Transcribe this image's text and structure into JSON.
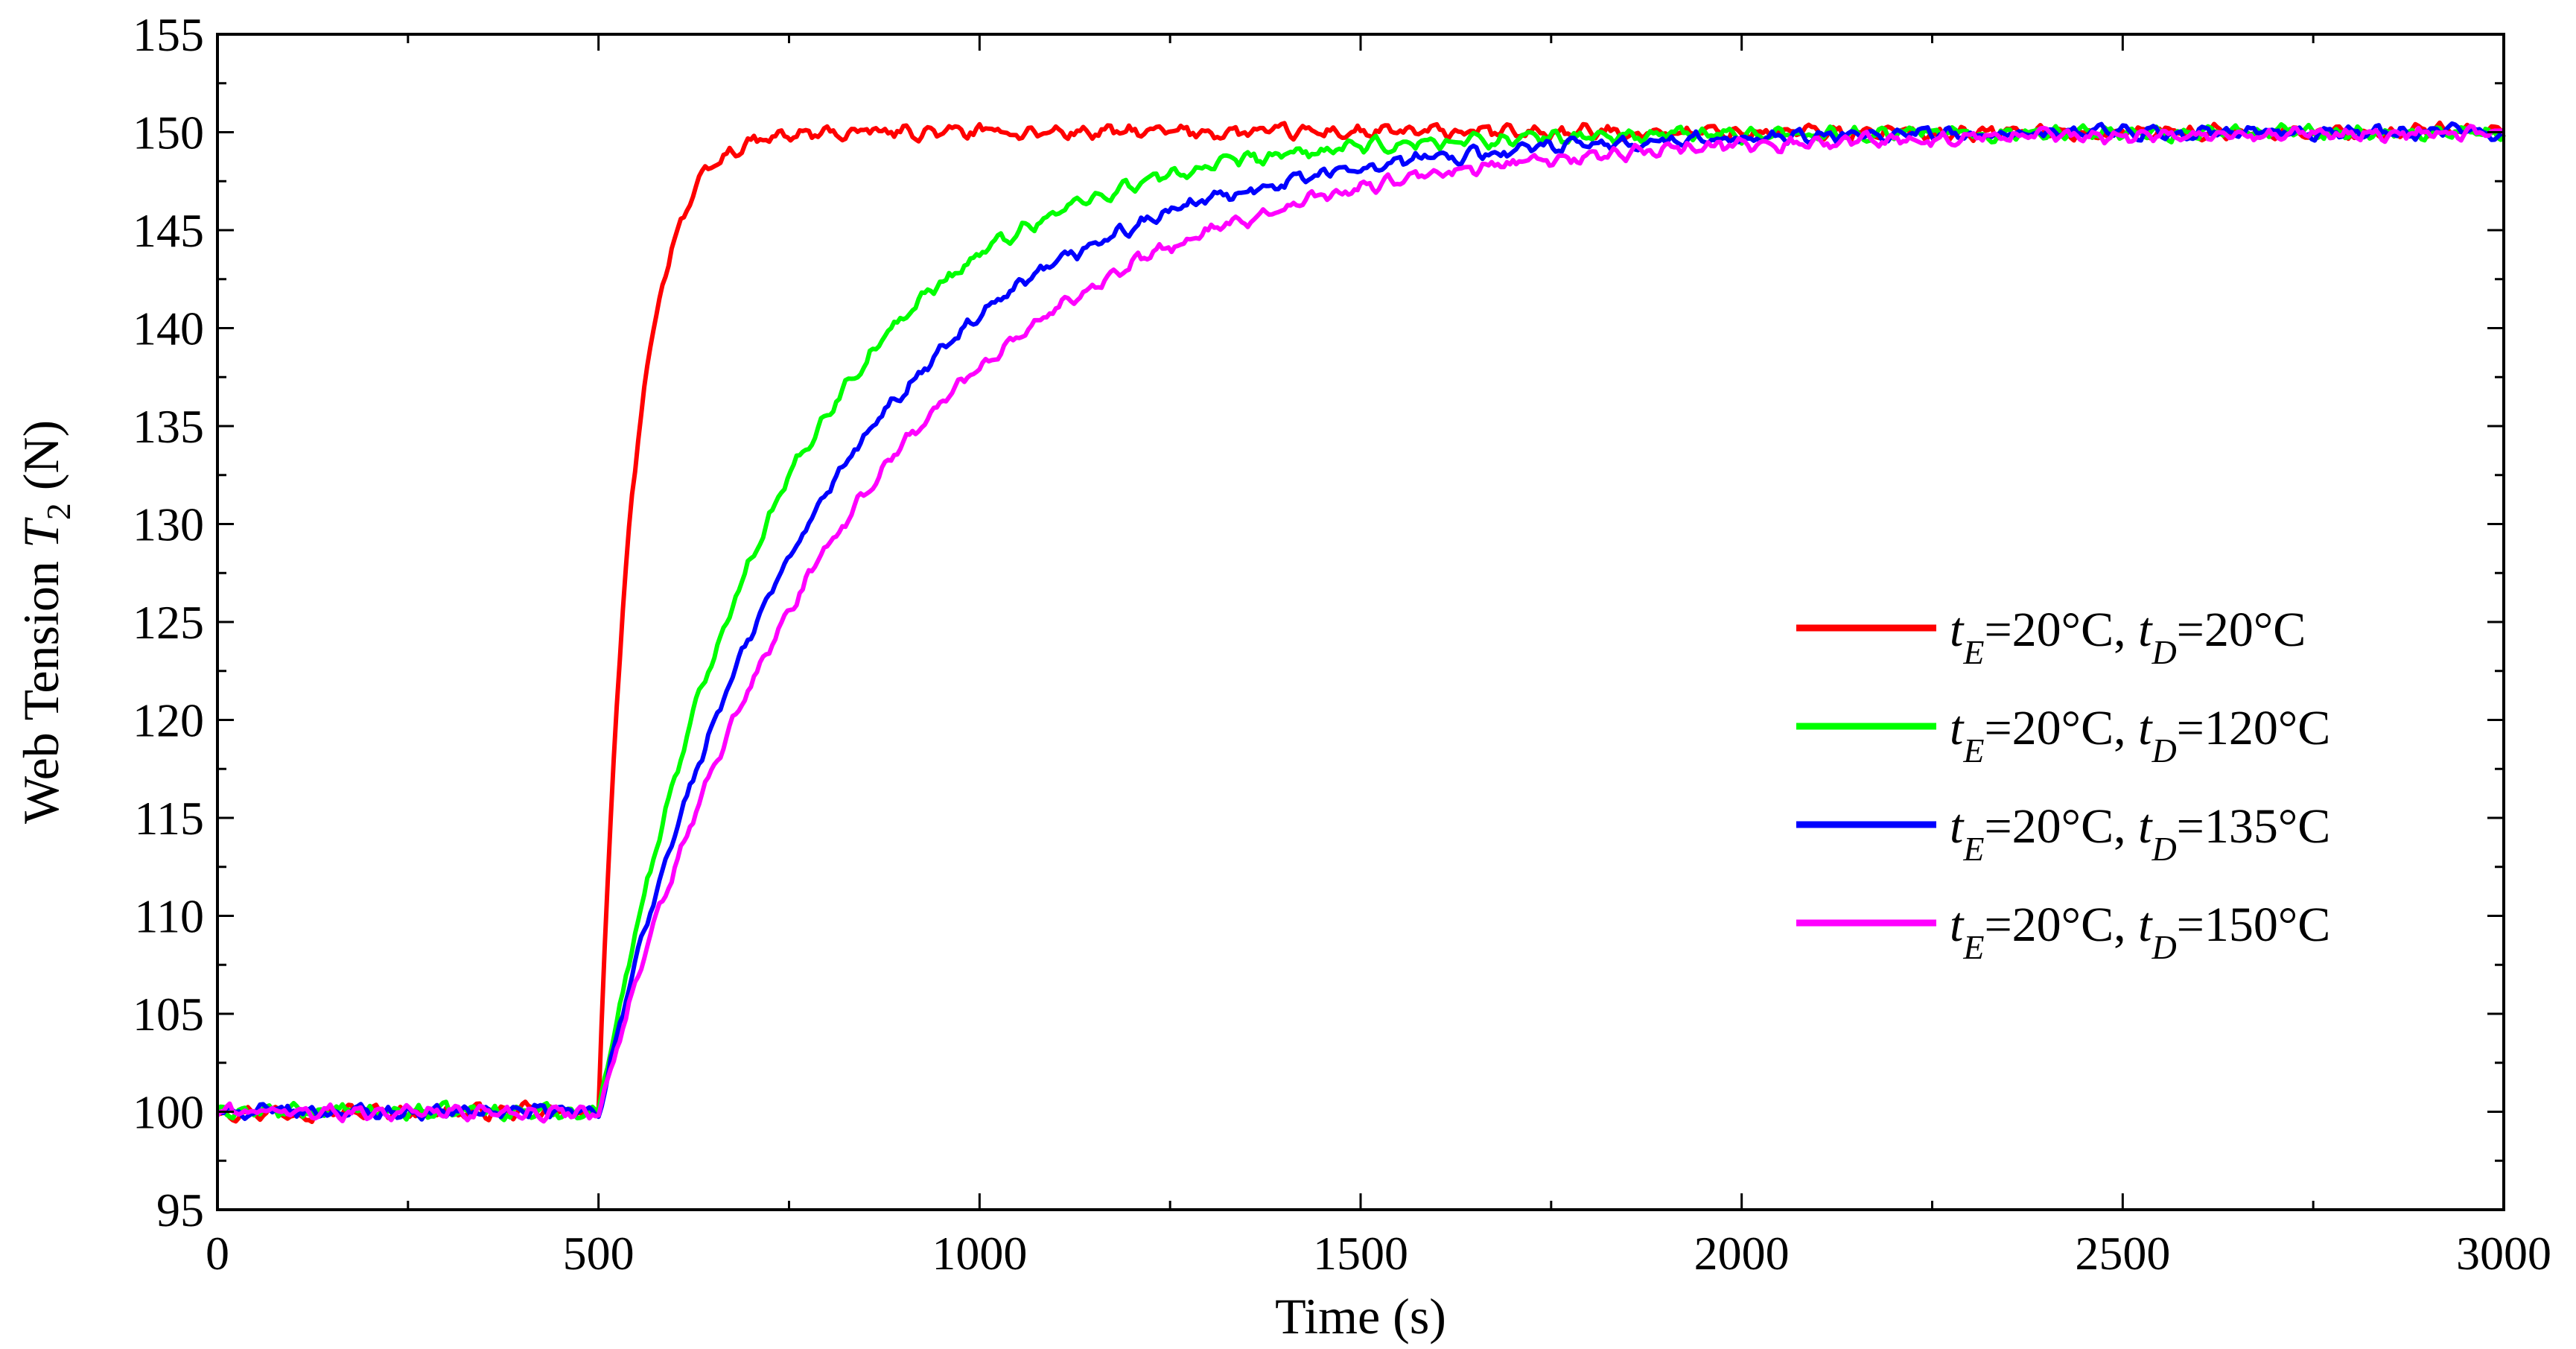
{
  "chart_data": {
    "type": "line",
    "xlabel": "Time (s)",
    "ylabel": {
      "prefix": "Web Tension ",
      "var": "T",
      "sub": "2",
      "unit": " (N)"
    },
    "xlim": [
      0,
      3000
    ],
    "ylim": [
      95,
      155
    ],
    "xticks": [
      0,
      500,
      1000,
      1500,
      2000,
      2500,
      3000
    ],
    "yticks": [
      95,
      100,
      105,
      110,
      115,
      120,
      125,
      130,
      135,
      140,
      145,
      150,
      155
    ],
    "grid": false,
    "legend_position": "center-right",
    "step_time": 500,
    "initial_value": 100,
    "final_value": 150,
    "series": [
      {
        "name": "tE=20°C, tD=20°C",
        "color": "#ff0000",
        "time_constant_s": 45,
        "legend": {
          "a": "t",
          "a_sub": "E",
          "b": "=20°C, ",
          "c": "t",
          "c_sub": "D",
          "d": "=20°C"
        }
      },
      {
        "name": "tE=20°C, tD=120°C",
        "color": "#00ff00",
        "time_constant_s": 240,
        "legend": {
          "a": "t",
          "a_sub": "E",
          "b": "=20°C, ",
          "c": "t",
          "c_sub": "D",
          "d": "=120°C"
        }
      },
      {
        "name": "tE=20°C, tD=135°C",
        "color": "#0000ff",
        "time_constant_s": 300,
        "legend": {
          "a": "t",
          "a_sub": "E",
          "b": "=20°C, ",
          "c": "t",
          "c_sub": "D",
          "d": "=135°C"
        }
      },
      {
        "name": "tE=20°C, tD=150°C",
        "color": "#ff00ff",
        "time_constant_s": 350,
        "legend": {
          "a": "t",
          "a_sub": "E",
          "b": "=20°C, ",
          "c": "t",
          "c_sub": "D",
          "d": "=150°C"
        }
      }
    ]
  }
}
